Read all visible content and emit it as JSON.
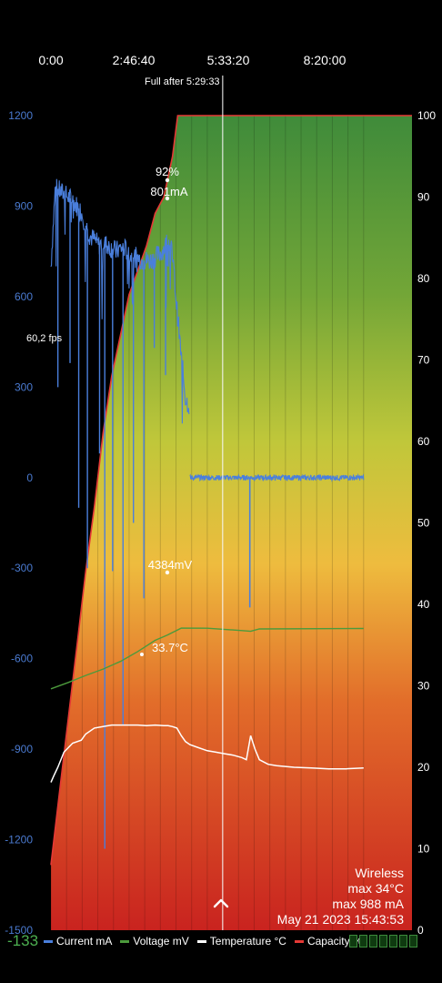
{
  "chart_data": {
    "type": "line",
    "x_ticks": [
      "0:00",
      "2:46:40",
      "5:33:20",
      "8:20:00"
    ],
    "x_range_seconds": [
      0,
      36000
    ],
    "marker_line_label": "Full after 5:29:33",
    "left_axis": {
      "ticks": [
        1200,
        900,
        600,
        300,
        0,
        -300,
        -600,
        -900,
        -1200,
        -1500
      ],
      "range": [
        -1500,
        1200
      ]
    },
    "right_axis": {
      "ticks": [
        100,
        90,
        80,
        70,
        60,
        50,
        40,
        30,
        20,
        10,
        0
      ],
      "range": [
        0,
        100
      ]
    },
    "overlay_text": "60,2 fps",
    "series": [
      {
        "name": "Current mA",
        "color": "#4a7fdc",
        "points": [
          [
            0,
            700
          ],
          [
            500,
            960
          ],
          [
            1000,
            950
          ],
          [
            1500,
            940
          ],
          [
            2000,
            930
          ],
          [
            2500,
            920
          ],
          [
            3000,
            900
          ],
          [
            3500,
            880
          ],
          [
            4000,
            840
          ],
          [
            4500,
            800
          ],
          [
            5000,
            790
          ],
          [
            5500,
            770
          ],
          [
            6000,
            780
          ],
          [
            6500,
            770
          ],
          [
            7000,
            760
          ],
          [
            7500,
            750
          ],
          [
            8000,
            760
          ],
          [
            8500,
            760
          ],
          [
            9000,
            740
          ],
          [
            9500,
            730
          ],
          [
            10000,
            730
          ],
          [
            10500,
            720
          ],
          [
            11000,
            720
          ],
          [
            11500,
            720
          ],
          [
            12000,
            730
          ],
          [
            12500,
            740
          ],
          [
            13000,
            760
          ],
          [
            13500,
            790
          ],
          [
            14000,
            740
          ],
          [
            14500,
            560
          ],
          [
            14700,
            500
          ],
          [
            15000,
            400
          ],
          [
            15200,
            350
          ],
          [
            15500,
            260
          ],
          [
            15900,
            240
          ]
        ],
        "spikes": [
          [
            800,
            300
          ],
          [
            2200,
            380
          ],
          [
            3200,
            -100
          ],
          [
            4200,
            -300
          ],
          [
            5600,
            80
          ],
          [
            6200,
            -1230
          ],
          [
            7100,
            -310
          ],
          [
            8300,
            -820
          ],
          [
            9500,
            -150
          ],
          [
            10700,
            -400
          ],
          [
            11900,
            430
          ],
          [
            13200,
            340
          ]
        ],
        "after_full": {
          "start": 16000,
          "end": 36000,
          "value": 0,
          "dip_at": 22900,
          "dip_value": -430
        },
        "annotation": {
          "x": 13400,
          "value": 801,
          "text": "801mA"
        }
      },
      {
        "name": "Voltage mV",
        "color": "#4c9a3c",
        "points": [
          [
            0,
            -700
          ],
          [
            2000,
            -680
          ],
          [
            4000,
            -655
          ],
          [
            6000,
            -635
          ],
          [
            8000,
            -610
          ],
          [
            10000,
            -575
          ],
          [
            12000,
            -540
          ],
          [
            13400,
            -520
          ],
          [
            15000,
            -500
          ],
          [
            18000,
            -500
          ],
          [
            22000,
            -505
          ],
          [
            23000,
            -510
          ],
          [
            24000,
            -500
          ],
          [
            36000,
            -500
          ]
        ],
        "annotation": {
          "x": 13400,
          "text": "4384mV"
        }
      },
      {
        "name": "Temperature °C",
        "color": "#ffffff",
        "points": [
          [
            0,
            -1010
          ],
          [
            300,
            -990
          ],
          [
            800,
            -960
          ],
          [
            1500,
            -910
          ],
          [
            2500,
            -880
          ],
          [
            3500,
            -870
          ],
          [
            4000,
            -850
          ],
          [
            5000,
            -830
          ],
          [
            6000,
            -825
          ],
          [
            7000,
            -820
          ],
          [
            8000,
            -820
          ],
          [
            9000,
            -820
          ],
          [
            10000,
            -820
          ],
          [
            11000,
            -822
          ],
          [
            12000,
            -820
          ],
          [
            13000,
            -822
          ],
          [
            13500,
            -822
          ],
          [
            14000,
            -825
          ],
          [
            14500,
            -830
          ],
          [
            15000,
            -855
          ],
          [
            15500,
            -875
          ],
          [
            16000,
            -885
          ],
          [
            17000,
            -895
          ],
          [
            18000,
            -905
          ],
          [
            19000,
            -910
          ],
          [
            20000,
            -915
          ],
          [
            21000,
            -920
          ],
          [
            22000,
            -928
          ],
          [
            22500,
            -935
          ],
          [
            23000,
            -855
          ],
          [
            23500,
            -900
          ],
          [
            24000,
            -935
          ],
          [
            25000,
            -950
          ],
          [
            26000,
            -955
          ],
          [
            28000,
            -960
          ],
          [
            30000,
            -962
          ],
          [
            32000,
            -965
          ],
          [
            34000,
            -965
          ],
          [
            36000,
            -962
          ]
        ],
        "annotation": {
          "x": 13400,
          "text": "33.7°C"
        }
      },
      {
        "name": "Capacity %",
        "color": "#e53935",
        "points": [
          [
            0,
            8
          ],
          [
            1000,
            17
          ],
          [
            2000,
            26
          ],
          [
            3000,
            35
          ],
          [
            4000,
            44
          ],
          [
            5000,
            52
          ],
          [
            6000,
            61
          ],
          [
            7000,
            68
          ],
          [
            8000,
            73
          ],
          [
            9000,
            78
          ],
          [
            10000,
            81
          ],
          [
            11000,
            84
          ],
          [
            12000,
            88
          ],
          [
            13000,
            90
          ],
          [
            13400,
            92
          ],
          [
            14000,
            95
          ],
          [
            14600,
            100
          ],
          [
            36000,
            100
          ]
        ],
        "annotation": {
          "x": 13400,
          "text": "92%"
        }
      }
    ],
    "legend_position": "bottom"
  },
  "stats": {
    "line1": "Wireless",
    "line2": "max 34°C",
    "line3": "max 988 mA",
    "line4": "May 21 2023 15:43:53"
  },
  "status": {
    "value": "-133"
  }
}
